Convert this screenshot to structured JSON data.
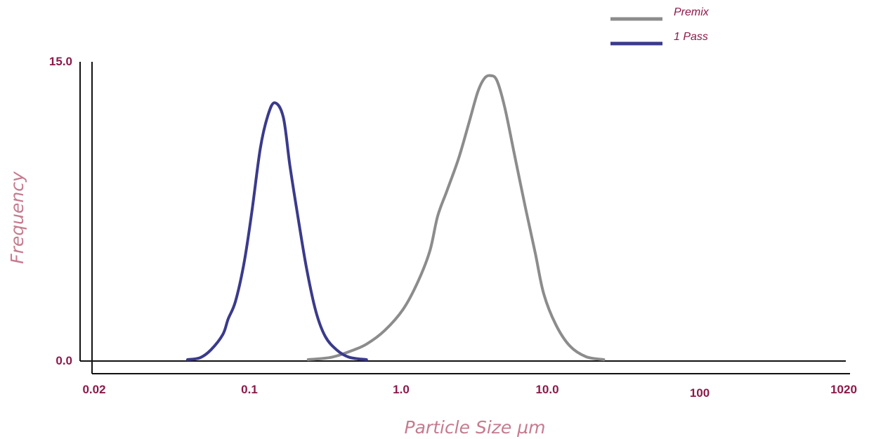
{
  "chart_data": {
    "type": "line",
    "title": "",
    "xlabel": "Particle Size µm",
    "ylabel": "Frequency",
    "x_scale": "log",
    "xlim": [
      0.02,
      1020
    ],
    "ylim": [
      0,
      15
    ],
    "x_ticks": [
      {
        "value": 0.02,
        "label": "0.02"
      },
      {
        "value": 0.1,
        "label": "0.1"
      },
      {
        "value": 1,
        "label": "1.0"
      },
      {
        "value": 10,
        "label": "10.0"
      },
      {
        "value": 100,
        "label": "100"
      },
      {
        "value": 1020,
        "label": "1020"
      }
    ],
    "y_ticks": [
      {
        "value": 0,
        "label": "0.0"
      },
      {
        "value": 15,
        "label": "15.0"
      }
    ],
    "grid": false,
    "legend": "top-right",
    "series": [
      {
        "name": "Premix",
        "color": "#8c8c8c",
        "points": [
          [
            0.43,
            0.0
          ],
          [
            0.6,
            0.12
          ],
          [
            0.8,
            0.45
          ],
          [
            1.0,
            0.8
          ],
          [
            1.3,
            1.5
          ],
          [
            1.7,
            2.6
          ],
          [
            2.1,
            4.0
          ],
          [
            2.5,
            5.6
          ],
          [
            2.8,
            7.4
          ],
          [
            3.2,
            8.7
          ],
          [
            3.8,
            10.4
          ],
          [
            4.4,
            12.2
          ],
          [
            5.0,
            13.8
          ],
          [
            5.5,
            14.5
          ],
          [
            6.0,
            14.65
          ],
          [
            6.6,
            14.4
          ],
          [
            7.4,
            13.0
          ],
          [
            8.5,
            10.6
          ],
          [
            10.0,
            7.8
          ],
          [
            11.5,
            5.5
          ],
          [
            13.0,
            3.4
          ],
          [
            15.5,
            1.8
          ],
          [
            19.0,
            0.7
          ],
          [
            24.0,
            0.15
          ],
          [
            31.0,
            0.0
          ]
        ]
      },
      {
        "name": "1 Pass",
        "color": "#3a3a8c",
        "points": [
          [
            0.075,
            0.0
          ],
          [
            0.09,
            0.1
          ],
          [
            0.105,
            0.5
          ],
          [
            0.125,
            1.3
          ],
          [
            0.135,
            2.1
          ],
          [
            0.15,
            3.0
          ],
          [
            0.17,
            5.0
          ],
          [
            0.19,
            7.6
          ],
          [
            0.215,
            10.9
          ],
          [
            0.24,
            12.6
          ],
          [
            0.265,
            13.25
          ],
          [
            0.3,
            12.5
          ],
          [
            0.33,
            10.0
          ],
          [
            0.37,
            7.4
          ],
          [
            0.42,
            4.7
          ],
          [
            0.48,
            2.5
          ],
          [
            0.55,
            1.2
          ],
          [
            0.65,
            0.5
          ],
          [
            0.78,
            0.12
          ],
          [
            1.0,
            0.0
          ]
        ]
      }
    ]
  }
}
